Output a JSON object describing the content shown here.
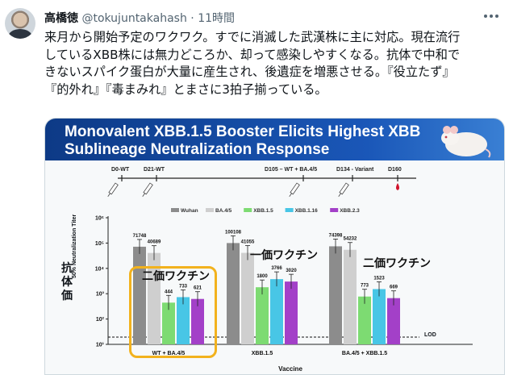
{
  "author": {
    "display_name": "高橋徳",
    "handle": "@tokujuntakahash",
    "separator": "·",
    "timestamp": "11時間"
  },
  "tweet": {
    "lines": [
      "来月から開始予定のワクワク。すでに消滅した武漢株に主に対応。現在流行",
      "しているXBB株には無力どころか、却って感染しやすくなる。抗体で中和で",
      "きないスパイク蛋白が大量に産生され、後遺症を増悪させる。『役立たず』",
      "『的外れ』『毒まみれ』とまさに3拍子揃っている。"
    ]
  },
  "slide": {
    "title_line1": "Monovalent XBB.1.5 Booster Elicits Highest XBB",
    "title_line2": "Sublineage Neutralization Response",
    "timeline": [
      "D0-WT",
      "D21-WT",
      "D105 – WT + BA.4/5",
      "D134 - Variant",
      "D160"
    ],
    "y_axis_title": "50% Neutralization Titer",
    "y_axis_jp": "抗体価",
    "annotations": {
      "bivalent_1": "二価ワクチン",
      "monovalent": "一価ワクチン",
      "bivalent_2": "二価ワクチン"
    },
    "lod_label": "LOD",
    "x_axis_title": "Vaccine",
    "colors": {
      "Wuhan": "#8c8c8c",
      "BA.4/5": "#cfcfcf",
      "XBB.1.5": "#7ddb72",
      "XBB.1.16": "#48c6e6",
      "XBB.2.3": "#a340c8"
    }
  },
  "chart_data": {
    "type": "bar",
    "categories": [
      "WT + BA.4/5",
      "XBB.1.5",
      "BA.4/5 + XBB.1.5"
    ],
    "series": [
      {
        "name": "Wuhan",
        "values": [
          71748,
          100108,
          74398
        ]
      },
      {
        "name": "BA.4/5",
        "values": [
          40689,
          41055,
          54232
        ]
      },
      {
        "name": "XBB.1.5",
        "values": [
          444,
          1800,
          773
        ]
      },
      {
        "name": "XBB.1.16",
        "values": [
          733,
          3766,
          1523
        ]
      },
      {
        "name": "XBB.2.3",
        "values": [
          621,
          3020,
          669
        ]
      }
    ],
    "data_labels": [
      [
        "71748",
        "40689",
        "444",
        "733",
        "621"
      ],
      [
        "100108",
        "41055",
        "1800",
        "3766",
        "3020"
      ],
      [
        "74398",
        "54232",
        "773",
        "1523",
        "669"
      ]
    ],
    "yscale": "log",
    "ylim": [
      10,
      1000000
    ],
    "yticks": [
      "10¹",
      "10²",
      "10³",
      "10⁴",
      "10⁵",
      "10⁶"
    ],
    "ylabel": "50% Neutralization Titer",
    "xlabel": "Vaccine"
  }
}
